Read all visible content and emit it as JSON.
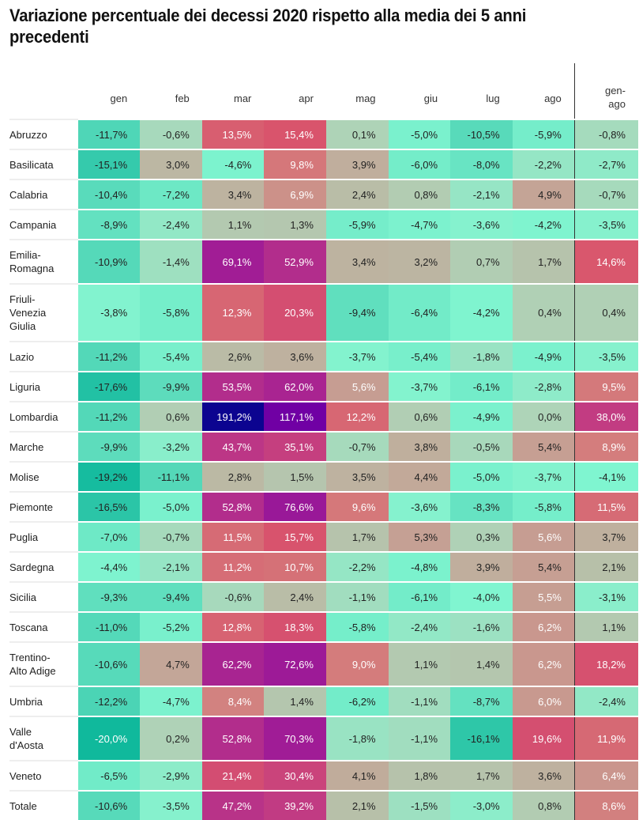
{
  "chart_data": {
    "type": "heatmap",
    "title": "Variazione percentuale dei decessi 2020 rispetto alla media dei 5 anni precedenti",
    "columns": [
      "gen",
      "feb",
      "mar",
      "apr",
      "mag",
      "giu",
      "lug",
      "ago",
      "gen-ago"
    ],
    "column_labels": {
      "gen": "gen",
      "feb": "feb",
      "mar": "mar",
      "apr": "apr",
      "mag": "mag",
      "giu": "giu",
      "lug": "lug",
      "ago": "ago",
      "gen-ago": [
        "gen-",
        "ago"
      ]
    },
    "value_unit": "%",
    "decimal_separator": ",",
    "color_scale": {
      "stops": [
        {
          "value": -20,
          "color": "#10b99c"
        },
        {
          "value": -10,
          "color": "#5cdcbc"
        },
        {
          "value": -4,
          "color": "#80f5d0"
        },
        {
          "value": 0,
          "color": "#aed4b8"
        },
        {
          "value": 4,
          "color": "#c0ad9c"
        },
        {
          "value": 9,
          "color": "#d47c7c"
        },
        {
          "value": 15,
          "color": "#d9546c"
        },
        {
          "value": 40,
          "color": "#c03a84"
        },
        {
          "value": 70,
          "color": "#a01c96"
        },
        {
          "value": 117,
          "color": "#7000a4"
        },
        {
          "value": 191,
          "color": "#0c0490"
        }
      ],
      "light_text_threshold": 5.5,
      "light_text_min_negative": -19.5
    },
    "rows": [
      {
        "region": [
          "Abruzzo"
        ],
        "values": [
          -11.7,
          -0.6,
          13.5,
          15.4,
          0.1,
          -5.0,
          -10.5,
          -5.9,
          -0.8
        ]
      },
      {
        "region": [
          "Basilicata"
        ],
        "values": [
          -15.1,
          3.0,
          -4.6,
          9.8,
          3.9,
          -6.0,
          -8.0,
          -2.2,
          -2.7
        ]
      },
      {
        "region": [
          "Calabria"
        ],
        "values": [
          -10.4,
          -7.2,
          3.4,
          6.9,
          2.4,
          0.8,
          -2.1,
          4.9,
          -0.7
        ]
      },
      {
        "region": [
          "Campania"
        ],
        "values": [
          -8.9,
          -2.4,
          1.1,
          1.3,
          -5.9,
          -4.7,
          -3.6,
          -4.2,
          -3.5
        ]
      },
      {
        "region": [
          "Emilia-",
          "Romagna"
        ],
        "values": [
          -10.9,
          -1.4,
          69.1,
          52.9,
          3.4,
          3.2,
          0.7,
          1.7,
          14.6
        ]
      },
      {
        "region": [
          "Friuli-",
          "Venezia",
          "Giulia"
        ],
        "values": [
          -3.8,
          -5.8,
          12.3,
          20.3,
          -9.4,
          -6.4,
          -4.2,
          0.4,
          0.4
        ]
      },
      {
        "region": [
          "Lazio"
        ],
        "values": [
          -11.2,
          -5.4,
          2.6,
          3.6,
          -3.7,
          -5.4,
          -1.8,
          -4.9,
          -3.5
        ]
      },
      {
        "region": [
          "Liguria"
        ],
        "values": [
          -17.6,
          -9.9,
          53.5,
          62.0,
          5.6,
          -3.7,
          -6.1,
          -2.8,
          9.5
        ]
      },
      {
        "region": [
          "Lombardia"
        ],
        "values": [
          -11.2,
          0.6,
          191.2,
          117.1,
          12.2,
          0.6,
          -4.9,
          0.0,
          38.0
        ]
      },
      {
        "region": [
          "Marche"
        ],
        "values": [
          -9.9,
          -3.2,
          43.7,
          35.1,
          -0.7,
          3.8,
          -0.5,
          5.4,
          8.9
        ]
      },
      {
        "region": [
          "Molise"
        ],
        "values": [
          -19.2,
          -11.1,
          2.8,
          1.5,
          3.5,
          4.4,
          -5.0,
          -3.7,
          -4.1
        ]
      },
      {
        "region": [
          "Piemonte"
        ],
        "values": [
          -16.5,
          -5.0,
          52.8,
          76.6,
          9.6,
          -3.6,
          -8.3,
          -5.8,
          11.5
        ]
      },
      {
        "region": [
          "Puglia"
        ],
        "values": [
          -7.0,
          -0.7,
          11.5,
          15.7,
          1.7,
          5.3,
          0.3,
          5.6,
          3.7
        ]
      },
      {
        "region": [
          "Sardegna"
        ],
        "values": [
          -4.4,
          -2.1,
          11.2,
          10.7,
          -2.2,
          -4.8,
          3.9,
          5.4,
          2.1
        ]
      },
      {
        "region": [
          "Sicilia"
        ],
        "values": [
          -9.3,
          -9.4,
          -0.6,
          2.4,
          -1.1,
          -6.1,
          -4.0,
          5.5,
          -3.1
        ]
      },
      {
        "region": [
          "Toscana"
        ],
        "values": [
          -11.0,
          -5.2,
          12.8,
          18.3,
          -5.8,
          -2.4,
          -1.6,
          6.2,
          1.1
        ]
      },
      {
        "region": [
          "Trentino-",
          "Alto Adige"
        ],
        "values": [
          -10.6,
          4.7,
          62.2,
          72.6,
          9.0,
          1.1,
          1.4,
          6.2,
          18.2
        ]
      },
      {
        "region": [
          "Umbria"
        ],
        "values": [
          -12.2,
          -4.7,
          8.4,
          1.4,
          -6.2,
          -1.1,
          -8.7,
          6.0,
          -2.4
        ]
      },
      {
        "region": [
          "Valle",
          "d'Aosta"
        ],
        "values": [
          -20.0,
          0.2,
          52.8,
          70.3,
          -1.8,
          -1.1,
          -16.1,
          19.6,
          11.9
        ]
      },
      {
        "region": [
          "Veneto"
        ],
        "values": [
          -6.5,
          -2.9,
          21.4,
          30.4,
          4.1,
          1.8,
          1.7,
          3.6,
          6.4
        ]
      },
      {
        "region": [
          "Totale"
        ],
        "values": [
          -10.6,
          -3.5,
          47.2,
          39.2,
          2.1,
          -1.5,
          -3.0,
          0.8,
          8.6
        ]
      }
    ]
  }
}
